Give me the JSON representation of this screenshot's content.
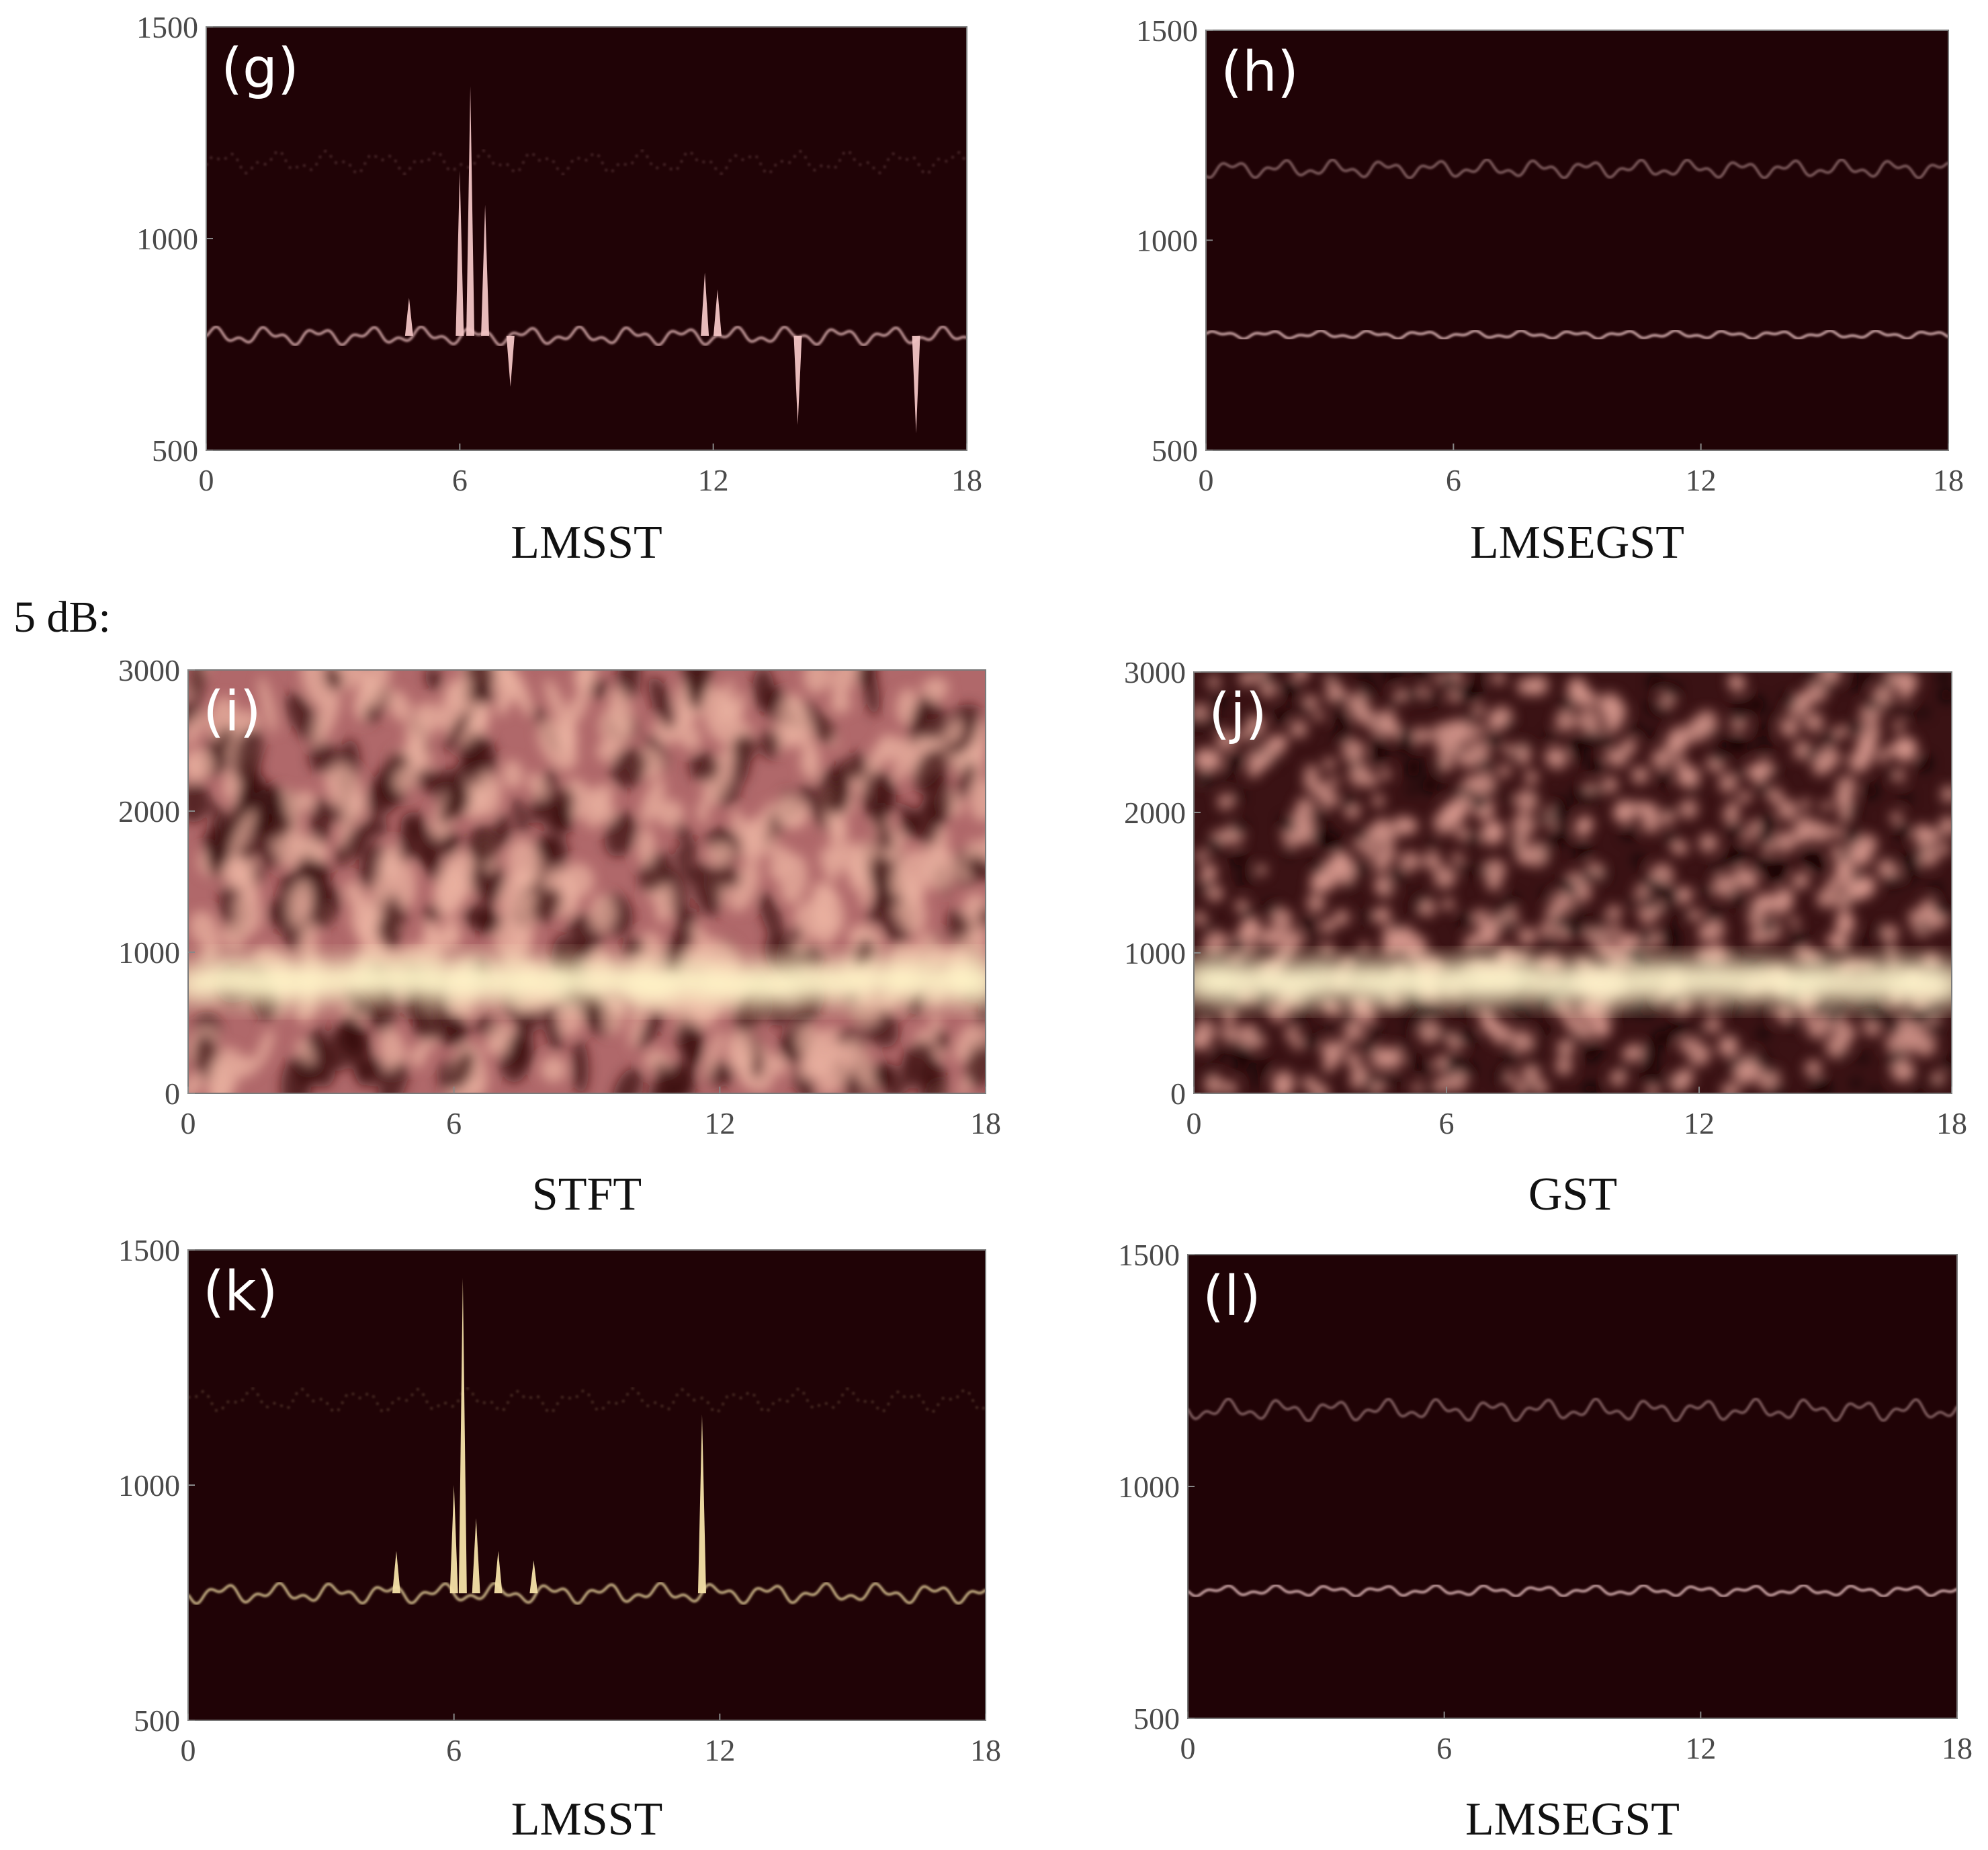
{
  "section_label": "5 dB:",
  "chart_data": [
    {
      "panel": "(g)",
      "caption": "LMSST",
      "type": "heatmap",
      "xlim": [
        0,
        18
      ],
      "xticks": [
        "0",
        "6",
        "12",
        "18"
      ],
      "ylim": [
        500,
        1500
      ],
      "yticks": [
        "500",
        "1000",
        "1500"
      ],
      "colors": {
        "background": "#200306",
        "trace": "#f2c4c4"
      },
      "ridges": [
        {
          "level": 770,
          "amplitude": 22,
          "intensity": 0.85,
          "dotted": false
        },
        {
          "level": 1180,
          "amplitude": 28,
          "intensity": 0.3,
          "dotted": true
        }
      ],
      "spikes": [
        [
          6.0,
          1160
        ],
        [
          6.25,
          1360
        ],
        [
          6.6,
          1080
        ],
        [
          11.8,
          920
        ],
        [
          4.8,
          860
        ],
        [
          16.8,
          540
        ],
        [
          14.0,
          560
        ],
        [
          12.1,
          880
        ],
        [
          7.2,
          650
        ]
      ]
    },
    {
      "panel": "(h)",
      "caption": "LMSEGST",
      "type": "heatmap",
      "xlim": [
        0,
        18
      ],
      "xticks": [
        "0",
        "6",
        "12",
        "18"
      ],
      "ylim": [
        500,
        1500
      ],
      "yticks": [
        "500",
        "1000",
        "1500"
      ],
      "colors": {
        "background": "#200306",
        "trace": "#f0c8c8"
      },
      "ridges": [
        {
          "level": 775,
          "amplitude": 10,
          "intensity": 0.9,
          "dotted": false
        },
        {
          "level": 1170,
          "amplitude": 22,
          "intensity": 0.5,
          "dotted": false
        }
      ],
      "spikes": []
    },
    {
      "panel": "(i)",
      "caption": "STFT",
      "type": "heatmap",
      "xlim": [
        0,
        18
      ],
      "xticks": [
        "0",
        "6",
        "12",
        "18"
      ],
      "ylim": [
        0,
        3000
      ],
      "yticks": [
        "0",
        "1000",
        "2000",
        "3000"
      ],
      "colors": {
        "background": "#b0686a",
        "trace": "#fff4c8"
      },
      "ridges": [
        {
          "level": 790,
          "amplitude": 0,
          "intensity": 1.0,
          "dotted": false
        }
      ],
      "spikes": []
    },
    {
      "panel": "(j)",
      "caption": "GST",
      "type": "heatmap",
      "xlim": [
        0,
        18
      ],
      "xticks": [
        "0",
        "6",
        "12",
        "18"
      ],
      "ylim": [
        0,
        3000
      ],
      "yticks": [
        "0",
        "1000",
        "2000",
        "3000"
      ],
      "colors": {
        "background": "#3a1214",
        "trace": "#fff6cc"
      },
      "ridges": [
        {
          "level": 790,
          "amplitude": 0,
          "intensity": 1.0,
          "dotted": false
        }
      ],
      "spikes": []
    },
    {
      "panel": "(k)",
      "caption": "LMSST",
      "type": "heatmap",
      "xlim": [
        0,
        18
      ],
      "xticks": [
        "0",
        "6",
        "12",
        "18"
      ],
      "ylim": [
        500,
        1500
      ],
      "yticks": [
        "500",
        "1000",
        "1500"
      ],
      "colors": {
        "background": "#200306",
        "trace": "#f6e2a8"
      },
      "ridges": [
        {
          "level": 770,
          "amplitude": 22,
          "intensity": 0.85,
          "dotted": false
        },
        {
          "level": 1180,
          "amplitude": 26,
          "intensity": 0.3,
          "dotted": true
        }
      ],
      "spikes": [
        [
          6.0,
          1000
        ],
        [
          6.2,
          1440
        ],
        [
          6.5,
          930
        ],
        [
          11.6,
          1150
        ],
        [
          4.7,
          860
        ],
        [
          7.0,
          860
        ],
        [
          7.8,
          840
        ]
      ]
    },
    {
      "panel": "(l)",
      "caption": "LMSEGST",
      "type": "heatmap",
      "xlim": [
        0,
        18
      ],
      "xticks": [
        "0",
        "6",
        "12",
        "18"
      ],
      "ylim": [
        500,
        1500
      ],
      "yticks": [
        "500",
        "1000",
        "1500"
      ],
      "colors": {
        "background": "#200306",
        "trace": "#f0c8c8"
      },
      "ridges": [
        {
          "level": 775,
          "amplitude": 12,
          "intensity": 0.9,
          "dotted": false
        },
        {
          "level": 1165,
          "amplitude": 24,
          "intensity": 0.5,
          "dotted": false
        }
      ],
      "spikes": []
    }
  ]
}
